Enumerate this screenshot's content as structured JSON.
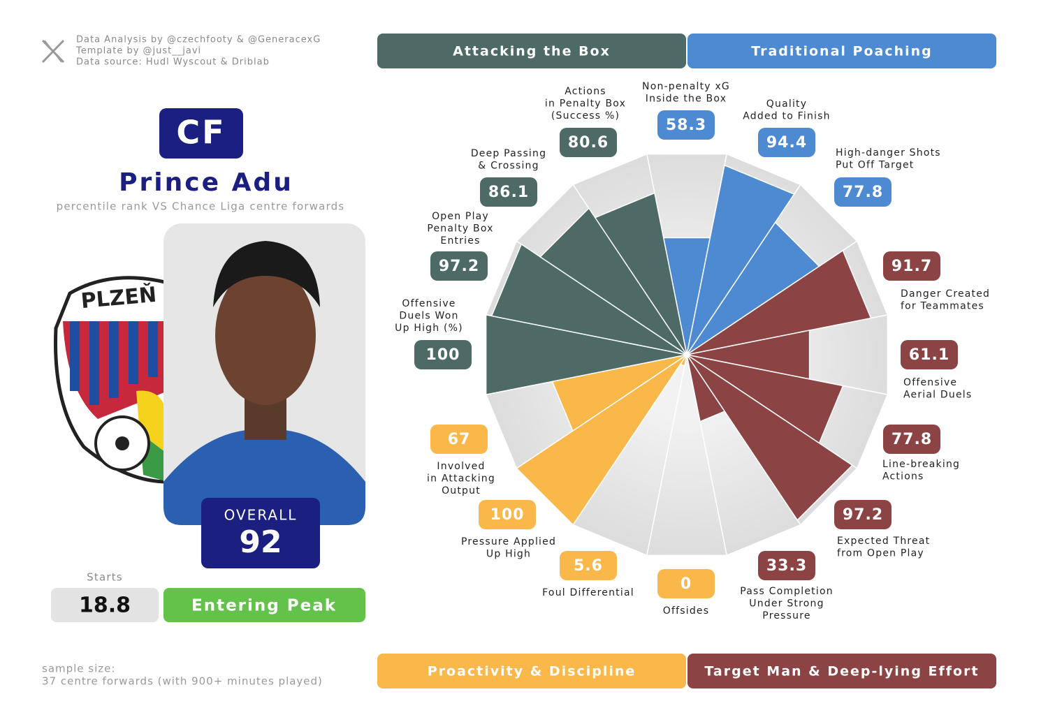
{
  "credits": [
    "Data Analysis by @czechfooty & @GeneracexG",
    "Template by @just__javi",
    "Data source: Hudl Wyscout & Driblab"
  ],
  "profile": {
    "position": "CF",
    "name": "Prince Adu",
    "subtitle": "percentile rank VS Chance Liga centre forwards",
    "overall_label": "OVERALL",
    "overall": 92,
    "starts_label": "Starts",
    "starts": 18.8,
    "stage": "Entering Peak"
  },
  "footer": [
    "sample size:",
    "37 centre forwards (with 900+ minutes played)"
  ],
  "chart_data": {
    "type": "polar-bar",
    "groups": [
      {
        "name": "Attacking the Box",
        "color": "#4e6a66"
      },
      {
        "name": "Traditional Poaching",
        "color": "#4d8ad2"
      },
      {
        "name": "Proactivity & Discipline",
        "color": "#fab84b"
      },
      {
        "name": "Target Man & Deep-lying Effort",
        "color": "#8c4343"
      }
    ],
    "categories": [
      [
        "Non-penalty xG",
        "Inside the Box"
      ],
      [
        "Quality",
        "Added to Finish"
      ],
      [
        "High-danger Shots",
        "Put Off Target"
      ],
      [
        "Danger Created",
        "for Teammates"
      ],
      [
        "Offensive",
        "Aerial Duels"
      ],
      [
        "Line-breaking",
        "Actions"
      ],
      [
        "Expected Threat",
        "from Open Play"
      ],
      [
        "Pass Completion",
        "Under Strong",
        "Pressure"
      ],
      [
        "Offsides"
      ],
      [
        "Foul Differential"
      ],
      [
        "Pressure Applied",
        "Up High"
      ],
      [
        "Involved",
        "in Attacking",
        "Output"
      ],
      [
        "Offensive",
        "Duels Won",
        "Up High (%)"
      ],
      [
        "Open Play",
        "Penalty Box",
        "Entries"
      ],
      [
        "Deep Passing",
        "& Crossing"
      ],
      [
        "Actions",
        "in Penalty Box",
        "(Success %)"
      ]
    ],
    "values": [
      58.3,
      94.4,
      77.8,
      91.7,
      61.1,
      77.8,
      97.2,
      33.3,
      0,
      5.6,
      100,
      67,
      100,
      97.2,
      86.1,
      80.6
    ],
    "colors": [
      "#4d8ad2",
      "#4d8ad2",
      "#4d8ad2",
      "#8c4343",
      "#8c4343",
      "#8c4343",
      "#8c4343",
      "#8c4343",
      "#fab84b",
      "#fab84b",
      "#fab84b",
      "#fab84b",
      "#4e6a66",
      "#4e6a66",
      "#4e6a66",
      "#4e6a66"
    ],
    "rlim": [
      0,
      100
    ]
  }
}
